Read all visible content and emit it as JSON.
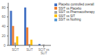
{
  "chart_data": {
    "type": "bar",
    "categories": [
      "SCIT",
      "SLIT",
      "SCIT vs SLIT"
    ],
    "series": [
      {
        "name": "Placebo controlled overall",
        "color": "#4472c4",
        "values": [
          73,
          80,
          3
        ]
      },
      {
        "name": "SSIT vs Placebo",
        "color": "#ed7d31",
        "values": [
          41,
          38,
          0
        ]
      },
      {
        "name": "SSIT vs Pharmacotherapy",
        "color": "#a5a5a5",
        "values": [
          6,
          3,
          2
        ]
      },
      {
        "name": "SSIT vs SIT",
        "color": "#ffc000",
        "values": [
          19,
          12,
          0
        ]
      },
      {
        "name": "SSIT vs Nothing",
        "color": "#5b9bd5",
        "values": [
          0,
          0,
          0
        ]
      }
    ],
    "ylim": [
      0,
      90
    ],
    "yticks": [
      0,
      20,
      40,
      60,
      80
    ],
    "grid": false,
    "legend": "upper right"
  }
}
